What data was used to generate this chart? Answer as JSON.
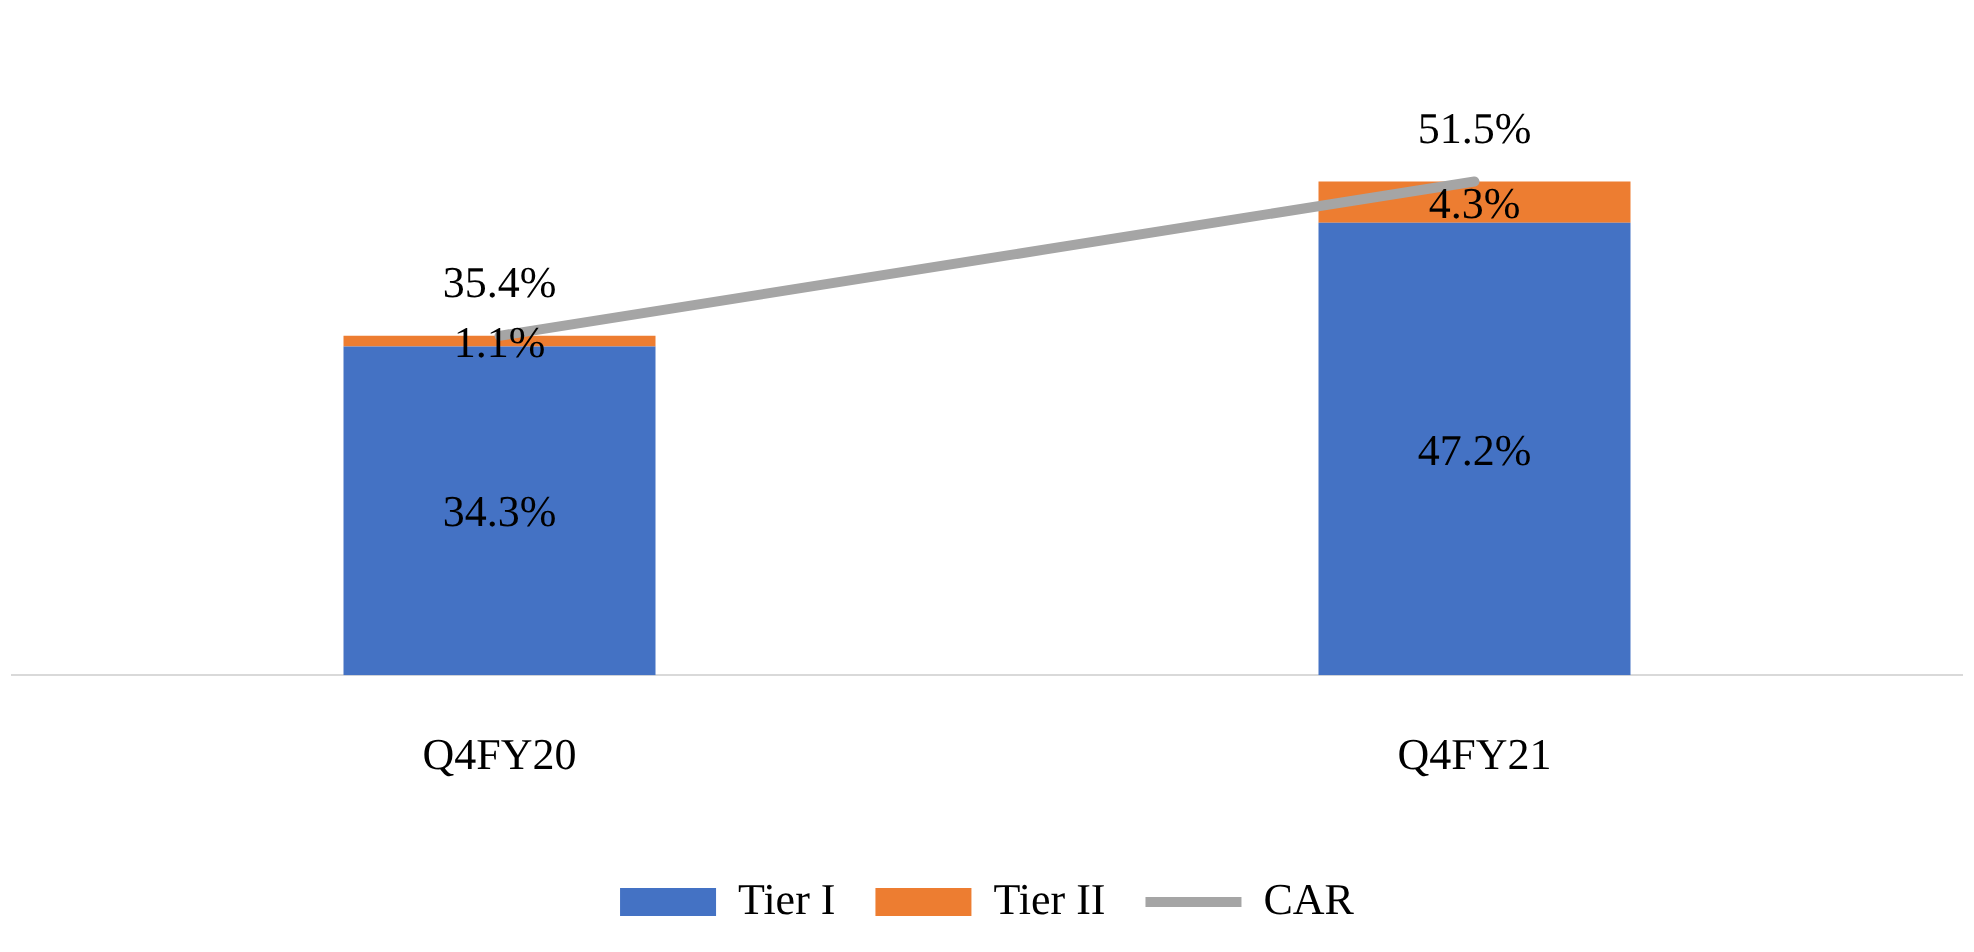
{
  "chart_data": {
    "type": "bar",
    "stacked": true,
    "legend": "bottom",
    "grid": false,
    "tick_labels": "x",
    "categories": [
      "Q4FY20",
      "Q4FY21"
    ],
    "series": [
      {
        "name": "Tier I",
        "color": "#4472c4",
        "values": [
          34.3,
          47.2
        ],
        "value_labels": [
          "34.3%",
          "47.2%"
        ]
      },
      {
        "name": "Tier II",
        "color": "#ed7d31",
        "values": [
          1.1,
          4.3
        ],
        "value_labels": [
          "1.1%",
          "4.3%"
        ]
      },
      {
        "name": "CAR",
        "type": "line",
        "color": "#a5a5a5",
        "values": [
          35.4,
          51.5
        ],
        "value_labels": [
          "35.4%",
          "51.5%"
        ]
      }
    ]
  }
}
